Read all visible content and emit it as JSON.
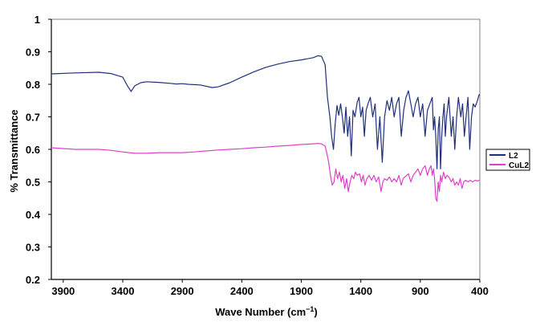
{
  "chart_data": {
    "type": "line",
    "title": "",
    "xlabel_parts": [
      "Wave Number (cm",
      "−1",
      ")"
    ],
    "ylabel": "% Transmittance",
    "xlim": [
      4000,
      400
    ],
    "ylim": [
      0.2,
      1.0
    ],
    "x_ticks": [
      3900,
      3400,
      2900,
      2400,
      1900,
      1400,
      900,
      400
    ],
    "y_ticks": [
      0.2,
      0.3,
      0.4,
      0.5,
      0.6,
      0.7,
      0.8,
      0.9,
      1.0
    ],
    "y_tick_labels": [
      "0.2",
      "0.3",
      "0.4",
      "0.5",
      "0.6",
      "0.7",
      "0.8",
      "0.9",
      "1"
    ],
    "grid": false,
    "legend_position": "right",
    "series": [
      {
        "name": "L2",
        "color": "#1f2f7a",
        "points": [
          [
            4000,
            0.832
          ],
          [
            3800,
            0.835
          ],
          [
            3600,
            0.837
          ],
          [
            3500,
            0.833
          ],
          [
            3400,
            0.822
          ],
          [
            3360,
            0.795
          ],
          [
            3330,
            0.778
          ],
          [
            3300,
            0.795
          ],
          [
            3250,
            0.805
          ],
          [
            3200,
            0.808
          ],
          [
            3100,
            0.806
          ],
          [
            3000,
            0.803
          ],
          [
            2950,
            0.801
          ],
          [
            2900,
            0.802
          ],
          [
            2850,
            0.8
          ],
          [
            2750,
            0.798
          ],
          [
            2650,
            0.79
          ],
          [
            2600,
            0.792
          ],
          [
            2500,
            0.805
          ],
          [
            2400,
            0.822
          ],
          [
            2300,
            0.838
          ],
          [
            2200,
            0.852
          ],
          [
            2100,
            0.862
          ],
          [
            2000,
            0.87
          ],
          [
            1900,
            0.875
          ],
          [
            1800,
            0.882
          ],
          [
            1760,
            0.888
          ],
          [
            1730,
            0.886
          ],
          [
            1700,
            0.86
          ],
          [
            1680,
            0.76
          ],
          [
            1660,
            0.7
          ],
          [
            1645,
            0.64
          ],
          [
            1630,
            0.6
          ],
          [
            1615,
            0.68
          ],
          [
            1600,
            0.735
          ],
          [
            1585,
            0.705
          ],
          [
            1570,
            0.74
          ],
          [
            1555,
            0.7
          ],
          [
            1540,
            0.65
          ],
          [
            1525,
            0.73
          ],
          [
            1510,
            0.64
          ],
          [
            1495,
            0.7
          ],
          [
            1480,
            0.58
          ],
          [
            1465,
            0.72
          ],
          [
            1450,
            0.7
          ],
          [
            1430,
            0.745
          ],
          [
            1415,
            0.76
          ],
          [
            1400,
            0.7
          ],
          [
            1385,
            0.73
          ],
          [
            1370,
            0.64
          ],
          [
            1355,
            0.72
          ],
          [
            1340,
            0.74
          ],
          [
            1320,
            0.76
          ],
          [
            1300,
            0.7
          ],
          [
            1280,
            0.74
          ],
          [
            1260,
            0.6
          ],
          [
            1240,
            0.7
          ],
          [
            1220,
            0.56
          ],
          [
            1200,
            0.7
          ],
          [
            1180,
            0.75
          ],
          [
            1160,
            0.72
          ],
          [
            1140,
            0.76
          ],
          [
            1120,
            0.7
          ],
          [
            1100,
            0.74
          ],
          [
            1080,
            0.76
          ],
          [
            1060,
            0.64
          ],
          [
            1040,
            0.72
          ],
          [
            1020,
            0.76
          ],
          [
            1000,
            0.78
          ],
          [
            980,
            0.74
          ],
          [
            960,
            0.7
          ],
          [
            940,
            0.74
          ],
          [
            920,
            0.76
          ],
          [
            900,
            0.7
          ],
          [
            880,
            0.74
          ],
          [
            860,
            0.64
          ],
          [
            840,
            0.72
          ],
          [
            820,
            0.74
          ],
          [
            800,
            0.76
          ],
          [
            790,
            0.66
          ],
          [
            780,
            0.7
          ],
          [
            770,
            0.64
          ],
          [
            760,
            0.54
          ],
          [
            750,
            0.66
          ],
          [
            740,
            0.7
          ],
          [
            730,
            0.54
          ],
          [
            720,
            0.64
          ],
          [
            710,
            0.7
          ],
          [
            700,
            0.74
          ],
          [
            690,
            0.64
          ],
          [
            680,
            0.7
          ],
          [
            660,
            0.76
          ],
          [
            640,
            0.64
          ],
          [
            625,
            0.7
          ],
          [
            610,
            0.6
          ],
          [
            595,
            0.7
          ],
          [
            580,
            0.76
          ],
          [
            560,
            0.7
          ],
          [
            545,
            0.74
          ],
          [
            530,
            0.64
          ],
          [
            515,
            0.7
          ],
          [
            500,
            0.76
          ],
          [
            485,
            0.6
          ],
          [
            470,
            0.7
          ],
          [
            455,
            0.74
          ],
          [
            440,
            0.73
          ],
          [
            420,
            0.75
          ],
          [
            405,
            0.77
          ]
        ]
      },
      {
        "name": "CuL2",
        "color": "#e040c8",
        "points": [
          [
            4000,
            0.605
          ],
          [
            3800,
            0.6
          ],
          [
            3600,
            0.6
          ],
          [
            3500,
            0.597
          ],
          [
            3400,
            0.592
          ],
          [
            3300,
            0.588
          ],
          [
            3200,
            0.588
          ],
          [
            3100,
            0.59
          ],
          [
            3000,
            0.59
          ],
          [
            2900,
            0.59
          ],
          [
            2800,
            0.592
          ],
          [
            2700,
            0.595
          ],
          [
            2600,
            0.598
          ],
          [
            2500,
            0.6
          ],
          [
            2400,
            0.602
          ],
          [
            2300,
            0.605
          ],
          [
            2200,
            0.607
          ],
          [
            2100,
            0.61
          ],
          [
            2000,
            0.612
          ],
          [
            1900,
            0.615
          ],
          [
            1800,
            0.617
          ],
          [
            1760,
            0.618
          ],
          [
            1730,
            0.617
          ],
          [
            1700,
            0.61
          ],
          [
            1690,
            0.595
          ],
          [
            1670,
            0.56
          ],
          [
            1655,
            0.52
          ],
          [
            1640,
            0.49
          ],
          [
            1625,
            0.5
          ],
          [
            1610,
            0.54
          ],
          [
            1595,
            0.51
          ],
          [
            1580,
            0.53
          ],
          [
            1565,
            0.5
          ],
          [
            1550,
            0.52
          ],
          [
            1535,
            0.48
          ],
          [
            1520,
            0.51
          ],
          [
            1505,
            0.47
          ],
          [
            1490,
            0.5
          ],
          [
            1475,
            0.52
          ],
          [
            1460,
            0.51
          ],
          [
            1445,
            0.53
          ],
          [
            1430,
            0.52
          ],
          [
            1410,
            0.525
          ],
          [
            1395,
            0.5
          ],
          [
            1380,
            0.52
          ],
          [
            1365,
            0.49
          ],
          [
            1350,
            0.51
          ],
          [
            1330,
            0.52
          ],
          [
            1310,
            0.505
          ],
          [
            1290,
            0.52
          ],
          [
            1270,
            0.5
          ],
          [
            1250,
            0.515
          ],
          [
            1230,
            0.47
          ],
          [
            1215,
            0.5
          ],
          [
            1200,
            0.51
          ],
          [
            1180,
            0.505
          ],
          [
            1160,
            0.515
          ],
          [
            1140,
            0.5
          ],
          [
            1120,
            0.51
          ],
          [
            1100,
            0.5
          ],
          [
            1080,
            0.52
          ],
          [
            1060,
            0.49
          ],
          [
            1045,
            0.51
          ],
          [
            1030,
            0.515
          ],
          [
            1015,
            0.52
          ],
          [
            1000,
            0.525
          ],
          [
            980,
            0.5
          ],
          [
            960,
            0.52
          ],
          [
            940,
            0.53
          ],
          [
            920,
            0.54
          ],
          [
            900,
            0.52
          ],
          [
            880,
            0.54
          ],
          [
            860,
            0.55
          ],
          [
            840,
            0.52
          ],
          [
            825,
            0.54
          ],
          [
            810,
            0.55
          ],
          [
            800,
            0.52
          ],
          [
            790,
            0.54
          ],
          [
            780,
            0.51
          ],
          [
            770,
            0.45
          ],
          [
            760,
            0.44
          ],
          [
            750,
            0.5
          ],
          [
            740,
            0.47
          ],
          [
            730,
            0.52
          ],
          [
            720,
            0.5
          ],
          [
            705,
            0.53
          ],
          [
            690,
            0.51
          ],
          [
            675,
            0.52
          ],
          [
            660,
            0.515
          ],
          [
            640,
            0.5
          ],
          [
            625,
            0.51
          ],
          [
            610,
            0.49
          ],
          [
            595,
            0.5
          ],
          [
            580,
            0.49
          ],
          [
            565,
            0.51
          ],
          [
            550,
            0.48
          ],
          [
            535,
            0.5
          ],
          [
            520,
            0.505
          ],
          [
            500,
            0.5
          ],
          [
            480,
            0.505
          ],
          [
            460,
            0.5
          ],
          [
            440,
            0.505
          ],
          [
            420,
            0.503
          ],
          [
            405,
            0.505
          ]
        ]
      }
    ]
  }
}
